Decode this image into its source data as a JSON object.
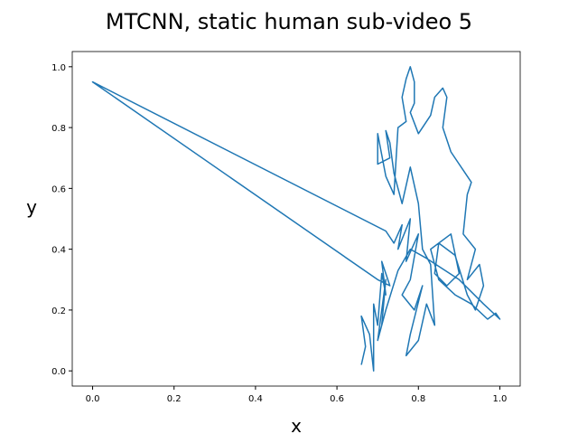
{
  "chart_data": {
    "type": "line",
    "title": "MTCNN, static human sub-video 5",
    "x_label": "x",
    "y_label": "y",
    "color": "#1f77b4",
    "x": [
      0.66,
      0.67,
      0.66,
      0.68,
      0.69,
      0.69,
      0.7,
      0.71,
      0.72,
      0.71,
      0.73,
      0.7,
      0,
      0.72,
      0.74,
      0.76,
      0.75,
      0.78,
      0.77,
      0.8,
      0.78,
      0.76,
      0.79,
      0.81,
      0.78,
      0.77,
      0.8,
      0.82,
      0.84,
      0.83,
      0.81,
      0.8,
      0.78,
      0.76,
      0.74,
      0.73,
      0.72,
      0.73,
      0.7,
      0.7,
      0.72,
      0.74,
      0.75,
      0.77,
      0.76,
      0.77,
      0.78,
      0.79,
      0.79,
      0.78,
      0.8,
      0.83,
      0.84,
      0.86,
      0.87,
      0.86,
      0.88,
      0.91,
      0.93,
      0.92,
      0.91,
      0.94,
      0.92,
      0.95,
      0.96,
      0.94,
      0.92,
      0.89,
      0.85,
      0.84,
      0.87,
      0.9,
      0.88,
      0.83,
      0.85,
      0.89,
      0.93,
      0.97,
      0.99,
      1.0,
      0.96,
      0.9,
      0.82,
      0.78,
      0.75,
      0.72,
      0.7,
      0.72,
      0.71
    ],
    "values": [
      0.02,
      0.08,
      0.18,
      0.12,
      0.0,
      0.22,
      0.15,
      0.32,
      0.25,
      0.36,
      0.28,
      0.3,
      0.95,
      0.46,
      0.42,
      0.48,
      0.4,
      0.5,
      0.36,
      0.45,
      0.3,
      0.25,
      0.2,
      0.28,
      0.12,
      0.05,
      0.1,
      0.22,
      0.15,
      0.35,
      0.4,
      0.55,
      0.67,
      0.55,
      0.65,
      0.75,
      0.79,
      0.7,
      0.68,
      0.78,
      0.64,
      0.58,
      0.8,
      0.82,
      0.9,
      0.96,
      1.0,
      0.95,
      0.88,
      0.85,
      0.78,
      0.84,
      0.9,
      0.93,
      0.9,
      0.8,
      0.72,
      0.66,
      0.62,
      0.58,
      0.45,
      0.4,
      0.3,
      0.35,
      0.28,
      0.2,
      0.25,
      0.38,
      0.42,
      0.32,
      0.28,
      0.32,
      0.45,
      0.4,
      0.3,
      0.25,
      0.22,
      0.17,
      0.19,
      0.17,
      0.22,
      0.3,
      0.37,
      0.4,
      0.33,
      0.2,
      0.1,
      0.3,
      0.15
    ],
    "xlim": [
      -0.05,
      1.05
    ],
    "ylim": [
      -0.05,
      1.05
    ],
    "xticks": [
      {
        "value": 0,
        "label": "0.0"
      },
      0.2,
      0.4,
      0.6,
      0.8,
      {
        "value": 1,
        "label": "1.0"
      }
    ],
    "yticks": [
      {
        "value": 0,
        "label": "0.0"
      },
      0.2,
      0.4,
      0.6,
      0.8,
      {
        "value": 1,
        "label": "1.0"
      }
    ]
  }
}
